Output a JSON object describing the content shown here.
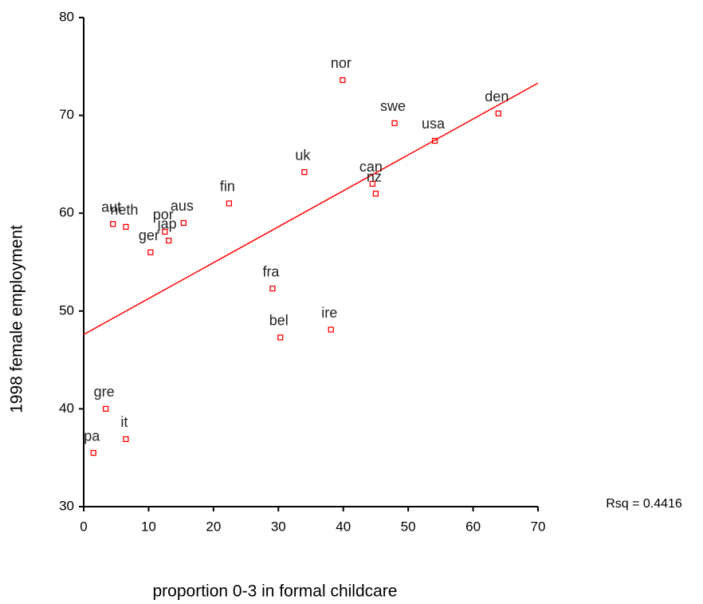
{
  "chart_data": {
    "type": "scatter",
    "x_label": "proportion 0-3 in formal childcare",
    "y_label": "1998 female employment",
    "annotation": "Rsq = 0.4416",
    "point_labels": [
      "nor",
      "swe",
      "den",
      "usa",
      "uk",
      "can",
      "nz",
      "fin",
      "aut",
      "neth",
      "aus",
      "por",
      "jap",
      "ger",
      "fra",
      "bel",
      "ire",
      "gre",
      "it",
      "pa"
    ],
    "x": [
      39.9,
      47.9,
      63.9,
      54.1,
      34.0,
      44.5,
      45.0,
      22.4,
      4.5,
      6.5,
      15.4,
      12.5,
      13.1,
      10.3,
      29.1,
      30.3,
      38.1,
      3.4,
      6.5,
      1.5
    ],
    "values": [
      73.6,
      69.2,
      70.2,
      67.4,
      64.2,
      63.0,
      62.0,
      61.0,
      58.9,
      58.6,
      59.0,
      58.1,
      57.2,
      56.0,
      52.3,
      47.3,
      48.1,
      40.0,
      36.9,
      35.5
    ],
    "color": "#ff0000",
    "fit_line": {
      "x": [
        0,
        70
      ],
      "y": [
        47.6,
        73.3
      ]
    },
    "xlim": [
      0,
      70
    ],
    "xticks": [
      0,
      10,
      20,
      30,
      40,
      50,
      60,
      70
    ],
    "ylim": [
      30,
      80
    ],
    "yticks": [
      30,
      40,
      50,
      60,
      70,
      80
    ]
  }
}
